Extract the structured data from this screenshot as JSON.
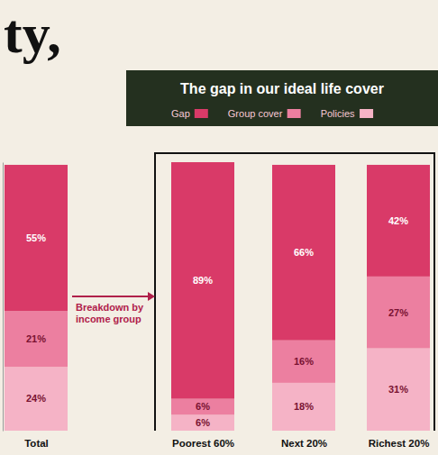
{
  "chart_data": {
    "type": "bar",
    "stacked": true,
    "data_labels": true,
    "tick_labels": "x",
    "legend": "top",
    "title": "The gap in our ideal life cover",
    "annotations": [
      "ty,",
      "Breakdown by income group"
    ],
    "categories": [
      "Total",
      "Poorest 60%",
      "Next 20%",
      "Richest 20%"
    ],
    "ylim": [
      0,
      101
    ],
    "yticks": [],
    "series": [
      {
        "name": "Gap",
        "color": "#d93a68",
        "values": [
          55,
          89,
          66,
          42
        ],
        "value_labels": [
          "55%",
          "89%",
          "66%",
          "42%"
        ]
      },
      {
        "name": "Group cover",
        "color": "#ec7fa0",
        "values": [
          21,
          6,
          16,
          27
        ],
        "value_labels": [
          "21%",
          "6%",
          "16%",
          "27%"
        ]
      },
      {
        "name": "Policies",
        "color": "#f5b3c6",
        "values": [
          24,
          6,
          18,
          31
        ],
        "value_labels": [
          "24%",
          "6%",
          "18%",
          "31%"
        ]
      }
    ]
  }
}
